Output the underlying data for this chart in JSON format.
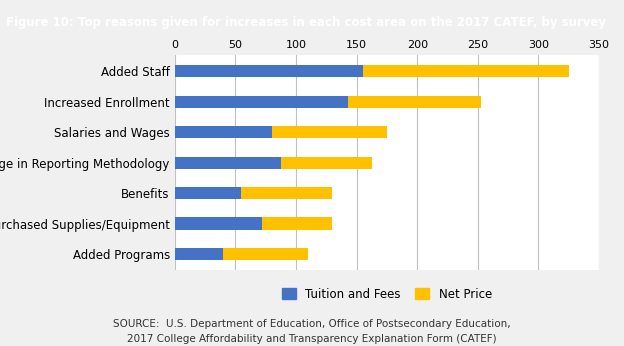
{
  "title": "Figure 10: Top reasons given for increases in each cost area on the 2017 CATEF, by survey",
  "title_bg_color": "#1f3864",
  "title_text_color": "#ffffff",
  "categories": [
    "Added Staff",
    "Increased Enrollment",
    "Salaries and Wages",
    "Change in Reporting Methodology",
    "Benefits",
    "Purchased Supplies/Equipment",
    "Added Programs"
  ],
  "tuition_values": [
    155,
    143,
    80,
    88,
    55,
    72,
    40
  ],
  "netprice_values": [
    170,
    110,
    95,
    75,
    75,
    58,
    70
  ],
  "bar_color_tuition": "#4472c4",
  "bar_color_netprice": "#ffc000",
  "xlim": [
    0,
    350
  ],
  "xticks": [
    0,
    50,
    100,
    150,
    200,
    250,
    300,
    350
  ],
  "legend_label_tuition": "Tuition and Fees",
  "legend_label_netprice": "Net Price",
  "source_line1": "SOURCE:  U.S. Department of Education, Office of Postsecondary Education,",
  "source_line2": "2017 College Affordability and Transparency Explanation Form (CATEF)",
  "bg_color": "#f0f0f0",
  "plot_bg_color": "#ffffff",
  "grid_color": "#c0c0c0",
  "tick_fontsize": 8,
  "label_fontsize": 8.5,
  "source_fontsize": 7.5
}
